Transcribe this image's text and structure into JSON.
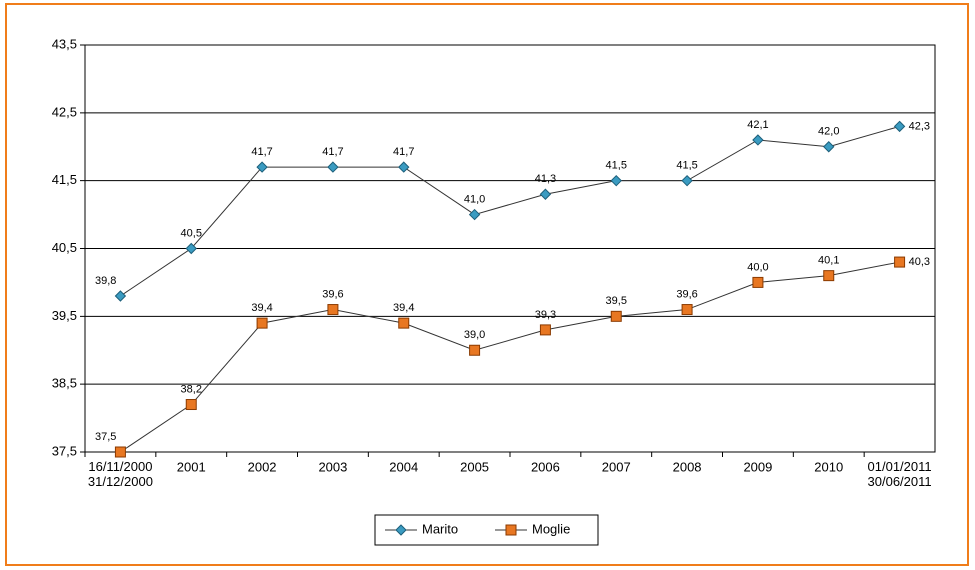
{
  "chart_data": {
    "type": "line",
    "categories": [
      "16/11/2000\n31/12/2000",
      "2001",
      "2002",
      "2003",
      "2004",
      "2005",
      "2006",
      "2007",
      "2008",
      "2009",
      "2010",
      "01/01/2011\n30/06/2011"
    ],
    "series": [
      {
        "name": "Marito",
        "color": "#3a9bc1",
        "marker": "diamond",
        "values": [
          39.8,
          40.5,
          41.7,
          41.7,
          41.7,
          41.0,
          41.3,
          41.5,
          41.5,
          42.1,
          42.0,
          42.3
        ],
        "value_labels": [
          "39,8",
          "40,5",
          "41,7",
          "41,7",
          "41,7",
          "41,0",
          "41,3",
          "41,5",
          "41,5",
          "42,1",
          "42,0",
          "42,3"
        ]
      },
      {
        "name": "Moglie",
        "color": "#e87722",
        "marker": "square",
        "values": [
          37.5,
          38.2,
          39.4,
          39.6,
          39.4,
          39.0,
          39.3,
          39.5,
          39.6,
          40.0,
          40.1,
          40.3
        ],
        "value_labels": [
          "37,5",
          "38,2",
          "39,4",
          "39,6",
          "39,4",
          "39,0",
          "39,3",
          "39,5",
          "39,6",
          "40,0",
          "40,1",
          "40,3"
        ]
      }
    ],
    "ylim": [
      37.5,
      43.5
    ],
    "yticks": [
      {
        "value": 37.5,
        "label": "37,5"
      },
      {
        "value": 38.5,
        "label": "38,5"
      },
      {
        "value": 39.5,
        "label": "39,5"
      },
      {
        "value": 40.5,
        "label": "40,5"
      },
      {
        "value": 41.5,
        "label": "41,5"
      },
      {
        "value": 42.5,
        "label": "42,5"
      },
      {
        "value": 43.5,
        "label": "43,5"
      }
    ],
    "grid": true,
    "legend": "bottom"
  }
}
